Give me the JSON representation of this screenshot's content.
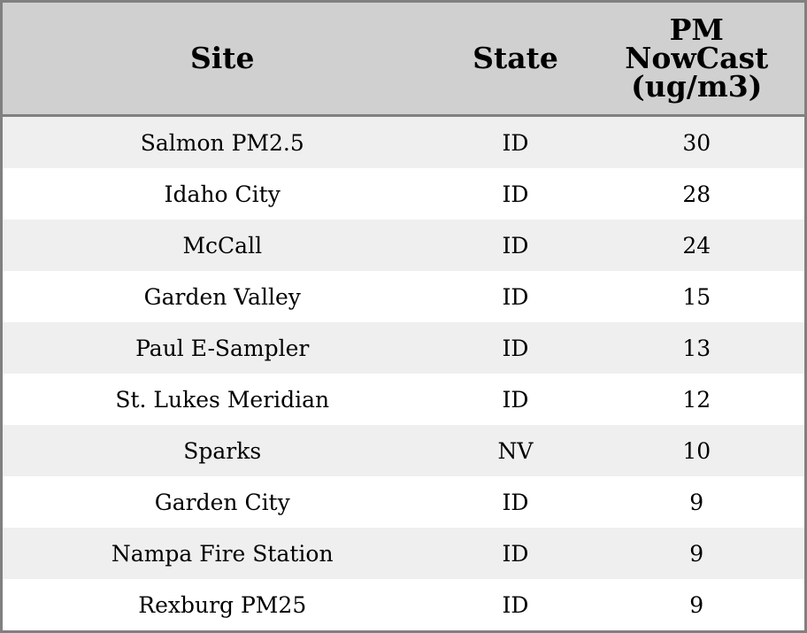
{
  "chart_data": {
    "type": "table",
    "columns": [
      "Site",
      "State",
      "PM NowCast (ug/m3)"
    ],
    "header_lines": [
      [
        "Site"
      ],
      [
        "State"
      ],
      [
        "PM",
        "NowCast",
        "(ug/m3)"
      ]
    ],
    "rows": [
      [
        "Salmon PM2.5",
        "ID",
        "30"
      ],
      [
        "Idaho City",
        "ID",
        "28"
      ],
      [
        "McCall",
        "ID",
        "24"
      ],
      [
        "Garden Valley",
        "ID",
        "15"
      ],
      [
        "Paul E-Sampler",
        "ID",
        "13"
      ],
      [
        "St. Lukes Meridian",
        "ID",
        "12"
      ],
      [
        "Sparks",
        "NV",
        "10"
      ],
      [
        "Garden City",
        "ID",
        "9"
      ],
      [
        "Nampa Fire Station",
        "ID",
        "9"
      ],
      [
        "Rexburg PM25",
        "ID",
        "9"
      ]
    ],
    "colors": {
      "header_bg": "#d0d0d0",
      "stripe_bg": "#efefef",
      "border": "#808080"
    }
  }
}
